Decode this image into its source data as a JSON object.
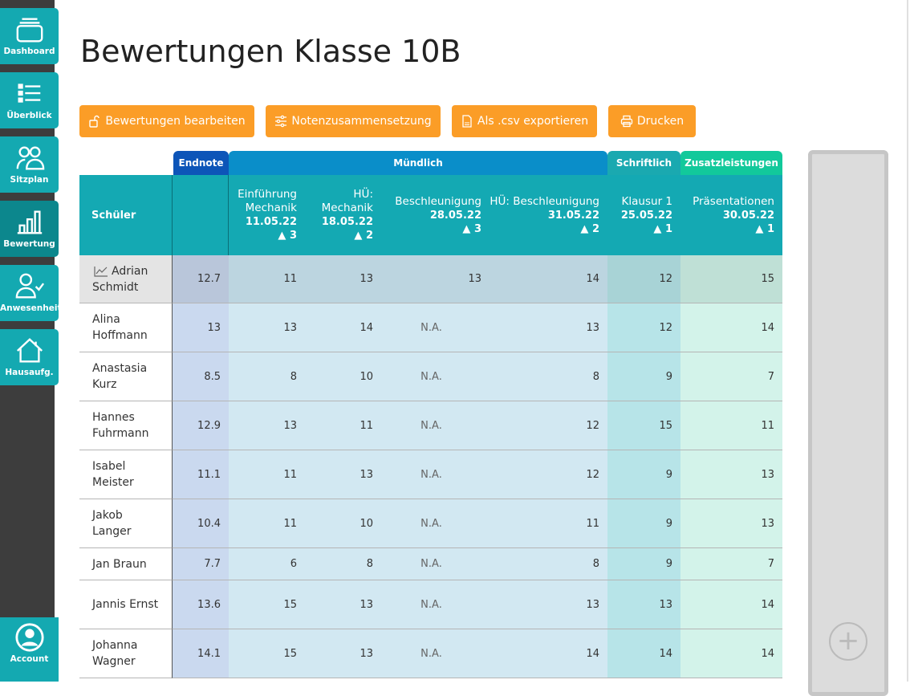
{
  "sidebar": {
    "items": [
      {
        "label": "Dashboard",
        "icon": "dashboard-icon",
        "active": false
      },
      {
        "label": "Überblick",
        "icon": "list-icon",
        "active": false
      },
      {
        "label": "Sitzplan",
        "icon": "users-icon",
        "active": false
      },
      {
        "label": "Bewertung",
        "icon": "bar-chart-icon",
        "active": true
      },
      {
        "label": "Anwesenheit",
        "icon": "user-check-icon",
        "active": false
      },
      {
        "label": "Hausaufg.",
        "icon": "house-icon",
        "active": false
      }
    ],
    "account": "Account"
  },
  "page": {
    "title": "Bewertungen Klasse 10B"
  },
  "toolbar": {
    "edit": "Bewertungen bearbeiten",
    "composition": "Notenzusammensetzung",
    "export": "Als .csv exportieren",
    "print": "Drucken"
  },
  "groups": {
    "endnote": "Endnote",
    "muendlich": "Mündlich",
    "schriftlich": "Schriftlich",
    "zusatz": "Zusatzleistungen"
  },
  "colors": {
    "orange": "#fb9d27",
    "teal": "#14a9b3",
    "endnote": "#0d55b8",
    "muendlich": "#0a8ec9",
    "schriftlich": "#1aa9b0",
    "zusatz": "#12c99b"
  },
  "table": {
    "student_header": "Schüler",
    "columns": [
      {
        "title": "Einführung Mechanik",
        "date": "11.05.22",
        "weight": "3"
      },
      {
        "title": "HÜ: Mechanik",
        "date": "18.05.22",
        "weight": "2"
      },
      {
        "title": "Beschleunigung",
        "date": "28.05.22",
        "weight": "3"
      },
      {
        "title": "HÜ: Beschleunigung",
        "date": "31.05.22",
        "weight": "2"
      },
      {
        "title": "Klausur 1",
        "date": "25.05.22",
        "weight": "1"
      },
      {
        "title": "Präsentationen",
        "date": "30.05.22",
        "weight": "1"
      }
    ],
    "rows": [
      {
        "name": "Adrian Schmidt",
        "final": "12.7",
        "grades": [
          "11",
          "13",
          "13",
          "14",
          "12",
          "15"
        ]
      },
      {
        "name": "Alina Hoffmann",
        "final": "13",
        "grades": [
          "13",
          "14",
          "N.A.",
          "13",
          "12",
          "14"
        ]
      },
      {
        "name": "Anastasia Kurz",
        "final": "8.5",
        "grades": [
          "8",
          "10",
          "N.A.",
          "8",
          "9",
          "7"
        ]
      },
      {
        "name": "Hannes Fuhrmann",
        "final": "12.9",
        "grades": [
          "13",
          "11",
          "N.A.",
          "12",
          "15",
          "11"
        ]
      },
      {
        "name": "Isabel Meister",
        "final": "11.1",
        "grades": [
          "11",
          "13",
          "N.A.",
          "12",
          "9",
          "13"
        ]
      },
      {
        "name": "Jakob Langer",
        "final": "10.4",
        "grades": [
          "11",
          "10",
          "N.A.",
          "11",
          "9",
          "13"
        ]
      },
      {
        "name": "Jan Braun",
        "final": "7.7",
        "grades": [
          "6",
          "8",
          "N.A.",
          "8",
          "9",
          "7"
        ]
      },
      {
        "name": "Jannis Ernst",
        "final": "13.6",
        "grades": [
          "15",
          "13",
          "N.A.",
          "13",
          "13",
          "14"
        ]
      },
      {
        "name": "Johanna Wagner",
        "final": "14.1",
        "grades": [
          "15",
          "13",
          "N.A.",
          "14",
          "14",
          "14"
        ]
      }
    ]
  }
}
